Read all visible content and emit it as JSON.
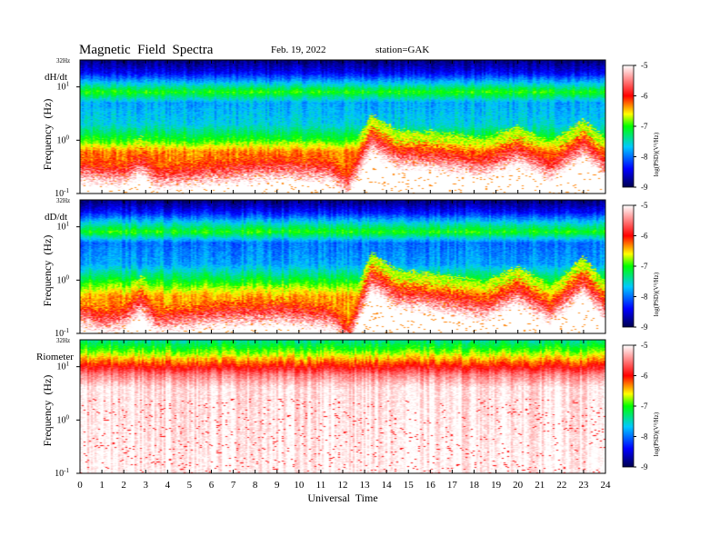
{
  "header": {
    "title": "Magnetic  Field  Spectra",
    "date": "Feb. 19, 2022",
    "station": "station=GAK"
  },
  "chart_data": {
    "type": "heatmap",
    "xlabel": "Universal  Time",
    "x_ticks": [
      "0",
      "1",
      "2",
      "3",
      "4",
      "5",
      "6",
      "7",
      "8",
      "9",
      "10",
      "11",
      "12",
      "13",
      "14",
      "15",
      "16",
      "17",
      "18",
      "19",
      "20",
      "21",
      "22",
      "23",
      "24"
    ],
    "xlim": [
      0,
      24
    ],
    "ylabel": "Frequency  (Hz)",
    "y_scale": "log",
    "ylim_hz": [
      0.1,
      32
    ],
    "y_top_label": "32Hz",
    "y_tick_base": "10",
    "y_tick_exponents": [
      "1",
      "0",
      "-1"
    ],
    "colorbar": {
      "label": "log(PSD)(V²/Hz)",
      "ticks": [
        "-5",
        "-6",
        "-7",
        "-8",
        "-9"
      ],
      "range": [
        -9,
        -5
      ],
      "colors": [
        "#000050",
        "#0000ff",
        "#00c8ff",
        "#00ff00",
        "#ffff00",
        "#ff0000",
        "#ffffff"
      ]
    },
    "panels": [
      {
        "name": "dH/dt",
        "background_hz": [
          {
            "hz": 32,
            "log_psd": -8.9
          },
          {
            "hz": 18,
            "log_psd": -8.4
          },
          {
            "hz": 12,
            "log_psd": -7.7
          },
          {
            "hz": 8,
            "log_psd": -7.0
          },
          {
            "hz": 5,
            "log_psd": -7.8
          },
          {
            "hz": 2,
            "log_psd": -7.6
          },
          {
            "hz": 1,
            "log_psd": -7.0
          },
          {
            "hz": 0.6,
            "log_psd": -6.3
          }
        ],
        "red_boundary": [
          {
            "ut": 0,
            "hz": 0.55
          },
          {
            "ut": 1,
            "hz": 0.5
          },
          {
            "ut": 2,
            "hz": 0.48
          },
          {
            "ut": 2.8,
            "hz": 0.75
          },
          {
            "ut": 3.5,
            "hz": 0.42
          },
          {
            "ut": 6,
            "hz": 0.5
          },
          {
            "ut": 9,
            "hz": 0.6
          },
          {
            "ut": 11.5,
            "hz": 0.55
          },
          {
            "ut": 12.2,
            "hz": 0.3
          },
          {
            "ut": 13.3,
            "hz": 2.0
          },
          {
            "ut": 14.5,
            "hz": 1.0
          },
          {
            "ut": 16,
            "hz": 0.95
          },
          {
            "ut": 18.5,
            "hz": 0.7
          },
          {
            "ut": 20,
            "hz": 1.2
          },
          {
            "ut": 21.5,
            "hz": 0.6
          },
          {
            "ut": 23,
            "hz": 1.6
          },
          {
            "ut": 24,
            "hz": 0.7
          }
        ]
      },
      {
        "name": "dD/dt",
        "background_hz": [
          {
            "hz": 32,
            "log_psd": -8.9
          },
          {
            "hz": 18,
            "log_psd": -8.3
          },
          {
            "hz": 12,
            "log_psd": -7.6
          },
          {
            "hz": 8,
            "log_psd": -7.0
          },
          {
            "hz": 5,
            "log_psd": -8.0
          },
          {
            "hz": 2,
            "log_psd": -7.8
          },
          {
            "hz": 1,
            "log_psd": -7.1
          },
          {
            "hz": 0.5,
            "log_psd": -6.4
          }
        ],
        "red_boundary": [
          {
            "ut": 0,
            "hz": 0.45
          },
          {
            "ut": 1,
            "hz": 0.35
          },
          {
            "ut": 2,
            "hz": 0.4
          },
          {
            "ut": 2.8,
            "hz": 0.8
          },
          {
            "ut": 3.5,
            "hz": 0.35
          },
          {
            "ut": 6,
            "hz": 0.45
          },
          {
            "ut": 9,
            "hz": 0.5
          },
          {
            "ut": 11.5,
            "hz": 0.4
          },
          {
            "ut": 12.3,
            "hz": 0.2
          },
          {
            "ut": 13.3,
            "hz": 2.2
          },
          {
            "ut": 14.5,
            "hz": 1.0
          },
          {
            "ut": 16,
            "hz": 0.9
          },
          {
            "ut": 18.5,
            "hz": 0.6
          },
          {
            "ut": 20,
            "hz": 1.2
          },
          {
            "ut": 21.5,
            "hz": 0.5
          },
          {
            "ut": 23,
            "hz": 1.8
          },
          {
            "ut": 24,
            "hz": 0.6
          }
        ]
      },
      {
        "name": "Riometer",
        "background_hz": [
          {
            "hz": 32,
            "log_psd": -7.4
          },
          {
            "hz": 22,
            "log_psd": -7.0
          },
          {
            "hz": 16,
            "log_psd": -6.6
          },
          {
            "hz": 11,
            "log_psd": -6.1
          },
          {
            "hz": 7,
            "log_psd": -5.5
          },
          {
            "hz": 4,
            "log_psd": -5.1
          },
          {
            "hz": 0.1,
            "log_psd": -5.0
          }
        ],
        "red_boundary": []
      }
    ]
  }
}
